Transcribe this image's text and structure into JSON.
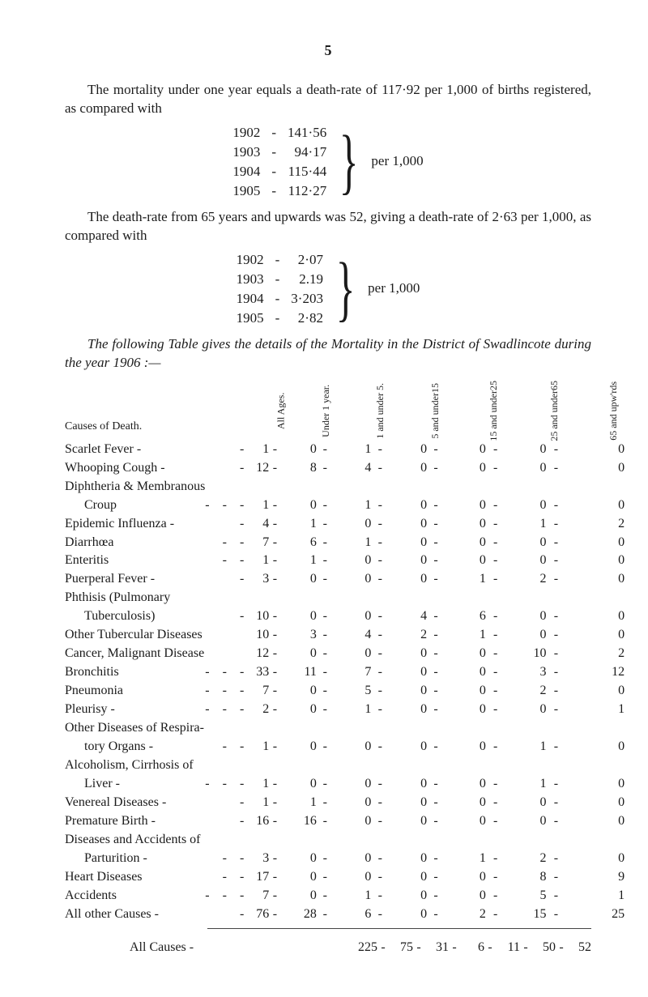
{
  "page_number": "5",
  "intro1a": "The mortality under one year equals a death-rate of 117·92 per 1,000 of births registered, as compared with",
  "rate_block_1": {
    "rows": [
      {
        "year": "1902",
        "val": "141·56"
      },
      {
        "year": "1903",
        "val": "94·17"
      },
      {
        "year": "1904",
        "val": "115·44"
      },
      {
        "year": "1905",
        "val": "112·27"
      }
    ],
    "label": "per 1,000"
  },
  "intro2": "The death-rate from 65 years and upwards was 52, giving a death-rate of 2·63 per 1,000, as compared with",
  "rate_block_2": {
    "rows": [
      {
        "year": "1902",
        "val": "2·07"
      },
      {
        "year": "1903",
        "val": "2.19"
      },
      {
        "year": "1904",
        "val": "3·203"
      },
      {
        "year": "1905",
        "val": "2·82"
      }
    ],
    "label": "per 1,000"
  },
  "table_title_a": "The following Table gives the details of the Mortality in the District of Swadlincote during the year 1906 :—",
  "headers": {
    "cause": "Causes of Death.",
    "c1": "All Ages.",
    "c2": "Under 1 year.",
    "c3": "1 and under 5.",
    "c4": "5 and under15",
    "c5": "15 and under25",
    "c6": "25 and under65",
    "c7": "65 and upw'rds"
  },
  "rows": [
    {
      "cause": "Scarlet Fever -",
      "lead": "-",
      "v": [
        "1",
        "0",
        "1",
        "0",
        "0",
        "0",
        "0"
      ]
    },
    {
      "cause": "Whooping Cough -",
      "lead": "-",
      "v": [
        "12",
        "8",
        "4",
        "0",
        "0",
        "0",
        "0"
      ]
    },
    {
      "cause": "Diphtheria & Membranous",
      "lead": "",
      "v": [
        "",
        "",
        "",
        "",
        "",
        "",
        ""
      ],
      "novals": true
    },
    {
      "cause": "Croup",
      "sub": true,
      "lead": "-    -    -",
      "v": [
        "1",
        "0",
        "1",
        "0",
        "0",
        "0",
        "0"
      ]
    },
    {
      "cause": "Epidemic Influenza -",
      "lead": "-",
      "v": [
        "4",
        "1",
        "0",
        "0",
        "0",
        "1",
        "2"
      ]
    },
    {
      "cause": "Diarrhœa",
      "lead": "-    -",
      "v": [
        "7",
        "6",
        "1",
        "0",
        "0",
        "0",
        "0"
      ]
    },
    {
      "cause": "Enteritis",
      "lead": "-    -",
      "v": [
        "1",
        "1",
        "0",
        "0",
        "0",
        "0",
        "0"
      ]
    },
    {
      "cause": "Puerperal Fever   -",
      "lead": "-",
      "v": [
        "3",
        "0",
        "0",
        "0",
        "1",
        "2",
        "0"
      ]
    },
    {
      "cause": "Phthisis (Pulmonary",
      "lead": "",
      "v": [
        "",
        "",
        "",
        "",
        "",
        "",
        ""
      ],
      "novals": true
    },
    {
      "cause": "Tuberculosis)",
      "sub": true,
      "lead": "-",
      "v": [
        "10",
        "0",
        "0",
        "4",
        "6",
        "0",
        "0"
      ]
    },
    {
      "cause": "Other Tubercular Diseases",
      "lead": "",
      "v": [
        "10",
        "3",
        "4",
        "2",
        "1",
        "0",
        "0"
      ]
    },
    {
      "cause": "Cancer, Malignant Disease",
      "lead": "",
      "v": [
        "12",
        "0",
        "0",
        "0",
        "0",
        "10",
        "2"
      ]
    },
    {
      "cause": "Bronchitis",
      "lead": "-    -    -",
      "v": [
        "33",
        "11",
        "7",
        "0",
        "0",
        "3",
        "12"
      ]
    },
    {
      "cause": "Pneumonia",
      "lead": "-    -    -",
      "v": [
        "7",
        "0",
        "5",
        "0",
        "0",
        "2",
        "0"
      ]
    },
    {
      "cause": "Pleurisy -",
      "lead": "-    -    -",
      "v": [
        "2",
        "0",
        "1",
        "0",
        "0",
        "0",
        "1"
      ]
    },
    {
      "cause": "Other Diseases of Respira-",
      "lead": "",
      "v": [
        "",
        "",
        "",
        "",
        "",
        "",
        ""
      ],
      "novals": true
    },
    {
      "cause": "tory Organs -",
      "sub": true,
      "lead": "-    -",
      "v": [
        "1",
        "0",
        "0",
        "0",
        "0",
        "1",
        "0"
      ]
    },
    {
      "cause": "Alcoholism, Cirrhosis of",
      "lead": "",
      "v": [
        "",
        "",
        "",
        "",
        "",
        "",
        ""
      ],
      "novals": true
    },
    {
      "cause": "Liver -",
      "sub": true,
      "lead": "-    -    -",
      "v": [
        "1",
        "0",
        "0",
        "0",
        "0",
        "1",
        "0"
      ]
    },
    {
      "cause": "Venereal Diseases -",
      "lead": "-",
      "v": [
        "1",
        "1",
        "0",
        "0",
        "0",
        "0",
        "0"
      ]
    },
    {
      "cause": "Premature Birth   -",
      "lead": "-",
      "v": [
        "16",
        "16",
        "0",
        "0",
        "0",
        "0",
        "0"
      ]
    },
    {
      "cause": "Diseases and Accidents of",
      "lead": "",
      "v": [
        "",
        "",
        "",
        "",
        "",
        "",
        ""
      ],
      "novals": true
    },
    {
      "cause": "Parturition -",
      "sub": true,
      "lead": "-    -",
      "v": [
        "3",
        "0",
        "0",
        "0",
        "1",
        "2",
        "0"
      ]
    },
    {
      "cause": "Heart Diseases",
      "lead": "-    -",
      "v": [
        "17",
        "0",
        "0",
        "0",
        "0",
        "8",
        "9"
      ]
    },
    {
      "cause": "Accidents",
      "lead": "-    -    -",
      "v": [
        "7",
        "0",
        "1",
        "0",
        "0",
        "5",
        "1"
      ]
    },
    {
      "cause": "All other Causes   -",
      "lead": "-",
      "v": [
        "76",
        "28",
        "6",
        "0",
        "2",
        "15",
        "25"
      ]
    }
  ],
  "total": {
    "cause": "All Causes   -",
    "v": [
      "225",
      "75",
      "31",
      "6",
      "11",
      "50",
      "52"
    ]
  }
}
